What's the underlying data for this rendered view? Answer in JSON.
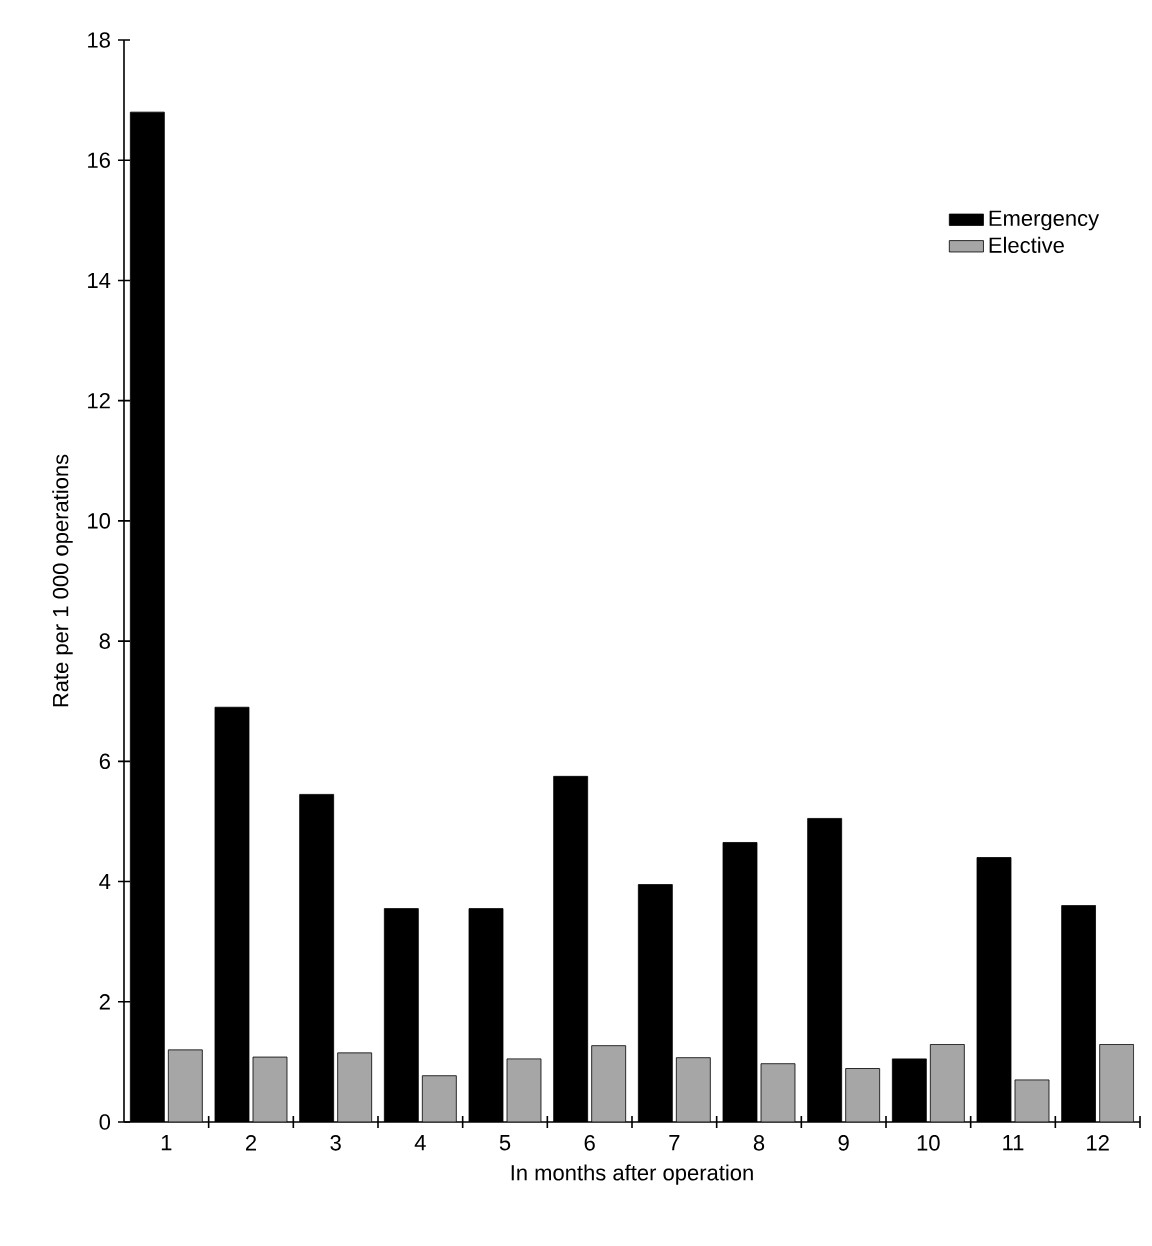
{
  "chart_data": {
    "type": "bar",
    "xlabel": "In months after operation",
    "ylabel": "Rate per 1 000 operations",
    "categories": [
      "1",
      "2",
      "3",
      "4",
      "5",
      "6",
      "7",
      "8",
      "9",
      "10",
      "11",
      "12"
    ],
    "series": [
      {
        "name": "Emergency",
        "color": "#000000",
        "values": [
          16.8,
          6.9,
          5.45,
          3.55,
          3.55,
          5.75,
          3.95,
          4.65,
          5.05,
          1.05,
          4.4,
          3.6
        ]
      },
      {
        "name": "Elective",
        "color": "#a6a6a6",
        "values": [
          1.2,
          1.08,
          1.15,
          0.77,
          1.05,
          1.27,
          1.07,
          0.97,
          0.89,
          1.29,
          0.7,
          1.29
        ]
      }
    ],
    "ylim": [
      0,
      18
    ],
    "yticks": [
      0,
      2,
      4,
      6,
      8,
      10,
      12,
      14,
      16,
      18
    ],
    "grid": false,
    "legend": "top right"
  }
}
